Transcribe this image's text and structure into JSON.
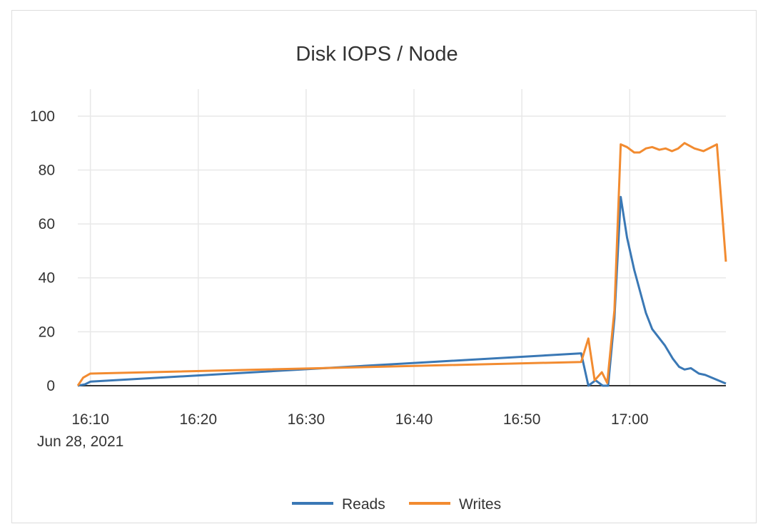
{
  "chart_data": {
    "type": "line",
    "title": "Disk IOPS / Node",
    "xlabel": "",
    "ylabel": "",
    "ylim": [
      0,
      110
    ],
    "yticks": [
      "0",
      "20",
      "40",
      "60",
      "80",
      "100"
    ],
    "xticks": [
      {
        "t": "16:10",
        "label": "16:10",
        "sub": "Jun 28, 2021"
      },
      {
        "t": "16:20",
        "label": "16:20"
      },
      {
        "t": "16:30",
        "label": "16:30"
      },
      {
        "t": "16:40",
        "label": "16:40"
      },
      {
        "t": "16:50",
        "label": "16:50"
      },
      {
        "t": "17:00",
        "label": "17:00"
      }
    ],
    "xrange": [
      "16:08:50",
      "17:08:55"
    ],
    "grid": true,
    "legend": "bottom",
    "series": [
      {
        "name": "Reads",
        "color": "#3a78b5",
        "x": [
          "16:08:50",
          "16:09:30",
          "16:10:00",
          "16:55:30",
          "16:56:10",
          "16:56:50",
          "16:57:30",
          "16:58:00",
          "16:58:35",
          "16:59:10",
          "16:59:45",
          "17:00:25",
          "17:01:30",
          "17:02:05",
          "17:03:15",
          "17:04:00",
          "17:04:35",
          "17:05:05",
          "17:05:40",
          "17:06:25",
          "17:07:00",
          "17:08:55"
        ],
        "values": [
          0,
          0.5,
          1.5,
          12,
          0,
          2,
          0,
          0,
          25,
          70,
          55,
          43,
          27,
          21,
          15,
          10,
          7,
          6,
          6.5,
          4.5,
          4,
          0.8
        ]
      },
      {
        "name": "Writes",
        "color": "#f28b30",
        "x": [
          "16:08:50",
          "16:09:20",
          "16:10:00",
          "16:55:30",
          "16:56:10",
          "16:56:45",
          "16:57:25",
          "16:57:55",
          "16:58:35",
          "16:59:10",
          "16:59:45",
          "17:00:25",
          "17:00:55",
          "17:01:30",
          "17:02:05",
          "17:02:45",
          "17:03:20",
          "17:03:55",
          "17:04:30",
          "17:05:05",
          "17:06:00",
          "17:06:50",
          "17:08:05",
          "17:08:55"
        ],
        "values": [
          0,
          3,
          4.5,
          8.8,
          17.5,
          2,
          5,
          1,
          28,
          89.5,
          88.5,
          86.5,
          86.5,
          88,
          88.5,
          87.5,
          88,
          87,
          88,
          90,
          88,
          87,
          89.5,
          46
        ]
      }
    ]
  }
}
